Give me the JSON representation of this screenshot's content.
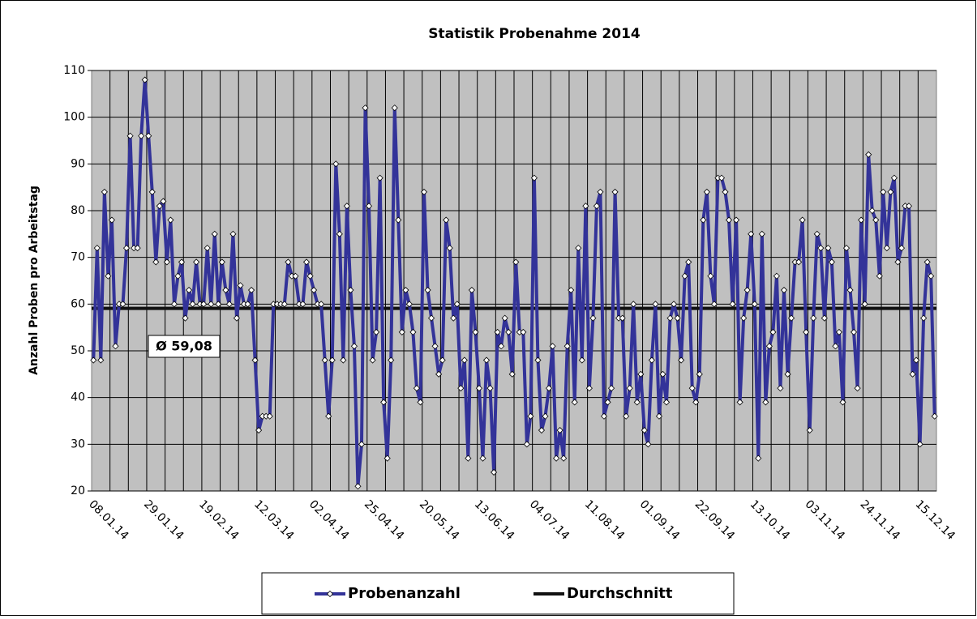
{
  "chart_data": {
    "type": "line",
    "title": "Statistik Probenahme 2014",
    "y_label": "Anzahl Proben pro Arbeitstag",
    "categories": [
      null,
      "08.01.14",
      null,
      null,
      null,
      null,
      null,
      null,
      null,
      null,
      null,
      null,
      null,
      null,
      null,
      null,
      "29.01.14",
      null,
      null,
      null,
      null,
      null,
      null,
      null,
      null,
      null,
      null,
      null,
      null,
      null,
      null,
      "19.02.14",
      null,
      null,
      null,
      null,
      null,
      null,
      null,
      null,
      null,
      null,
      null,
      null,
      null,
      null,
      "12.03.14",
      null,
      null,
      null,
      null,
      null,
      null,
      null,
      null,
      null,
      null,
      null,
      null,
      null,
      null,
      "02.04.14",
      null,
      null,
      null,
      null,
      null,
      null,
      null,
      null,
      null,
      null,
      null,
      null,
      null,
      null,
      "25.04.14",
      null,
      null,
      null,
      null,
      null,
      null,
      null,
      null,
      null,
      null,
      null,
      null,
      null,
      null,
      "20.05.14",
      null,
      null,
      null,
      null,
      null,
      null,
      null,
      null,
      null,
      null,
      null,
      null,
      null,
      null,
      "13.06.14",
      null,
      null,
      null,
      null,
      null,
      null,
      null,
      null,
      null,
      null,
      null,
      null,
      null,
      null,
      "04.07.14",
      null,
      null,
      null,
      null,
      null,
      null,
      null,
      null,
      null,
      null,
      null,
      null,
      null,
      null,
      "11.08.14",
      null,
      null,
      null,
      null,
      null,
      null,
      null,
      null,
      null,
      null,
      null,
      null,
      null,
      null,
      "01.09.14",
      null,
      null,
      null,
      null,
      null,
      null,
      null,
      null,
      null,
      null,
      null,
      null,
      null,
      null,
      "22.09.14",
      null,
      null,
      null,
      null,
      null,
      null,
      null,
      null,
      null,
      null,
      null,
      null,
      null,
      null,
      "13.10.14",
      null,
      null,
      null,
      null,
      null,
      null,
      null,
      null,
      null,
      null,
      null,
      null,
      null,
      null,
      "03.11.14",
      null,
      null,
      null,
      null,
      null,
      null,
      null,
      null,
      null,
      null,
      null,
      null,
      null,
      null,
      "24.11.14",
      null,
      null,
      null,
      null,
      null,
      null,
      null,
      null,
      null,
      null,
      null,
      null,
      null,
      null,
      "15.12.14",
      null,
      null,
      null
    ],
    "series": [
      {
        "name": "Probenanzahl",
        "color": "#333399",
        "values": [
          48,
          72,
          48,
          84,
          66,
          78,
          51,
          60,
          60,
          72,
          96,
          72,
          72,
          96,
          108,
          96,
          84,
          69,
          81,
          82,
          69,
          78,
          60,
          66,
          69,
          57,
          63,
          60,
          69,
          60,
          60,
          72,
          60,
          75,
          60,
          69,
          63,
          60,
          75,
          57,
          64,
          60,
          60,
          63,
          48,
          33,
          36,
          36,
          36,
          60,
          60,
          60,
          60,
          69,
          66,
          66,
          60,
          60,
          69,
          66,
          63,
          60,
          60,
          48,
          36,
          48,
          90,
          75,
          48,
          81,
          63,
          51,
          21,
          30,
          102,
          81,
          48,
          54,
          87,
          39,
          27,
          48,
          102,
          78,
          54,
          63,
          60,
          54,
          42,
          39,
          84,
          63,
          57,
          51,
          45,
          48,
          78,
          72,
          57,
          60,
          42,
          48,
          27,
          63,
          54,
          42,
          27,
          48,
          42,
          24,
          54,
          51,
          57,
          54,
          45,
          69,
          54,
          54,
          30,
          36,
          87,
          48,
          33,
          36,
          42,
          51,
          27,
          33,
          27,
          51,
          63,
          39,
          72,
          48,
          81,
          42,
          57,
          81,
          84,
          36,
          39,
          42,
          84,
          57,
          57,
          36,
          42,
          60,
          39,
          45,
          33,
          30,
          48,
          60,
          36,
          45,
          39,
          57,
          60,
          57,
          48,
          66,
          69,
          42,
          39,
          45,
          78,
          84,
          66,
          60,
          87,
          87,
          84,
          78,
          60,
          78,
          39,
          57,
          63,
          75,
          60,
          27,
          75,
          39,
          51,
          54,
          66,
          42,
          63,
          45,
          57,
          69,
          69,
          78,
          54,
          33,
          57,
          75,
          72,
          57,
          72,
          69,
          51,
          54,
          39,
          72,
          63,
          54,
          42,
          78,
          60,
          92,
          80,
          78,
          66,
          84,
          72,
          84,
          87,
          69,
          72,
          81,
          81,
          45,
          48,
          30,
          57,
          69,
          66,
          36
        ]
      },
      {
        "name": "Durchschnitt",
        "color": "#111111",
        "value": 59.08
      }
    ],
    "annotation": {
      "text": "Ø 59,08"
    },
    "ylim": [
      20,
      110
    ],
    "yticks": [
      20,
      30,
      40,
      50,
      60,
      70,
      80,
      90,
      100,
      110
    ],
    "grid": true
  }
}
